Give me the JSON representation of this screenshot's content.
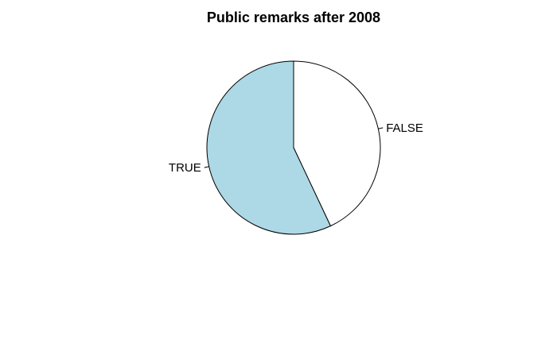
{
  "chart_data": {
    "type": "pie",
    "title": "Public remarks after 2008",
    "slices": [
      {
        "label": "FALSE",
        "value": 0.43,
        "color": "#ffffff"
      },
      {
        "label": "TRUE",
        "value": 0.57,
        "color": "#add8e6"
      }
    ],
    "start_angle_deg": 90,
    "direction": "clockwise",
    "border_color": "#000000",
    "legend": "none"
  }
}
